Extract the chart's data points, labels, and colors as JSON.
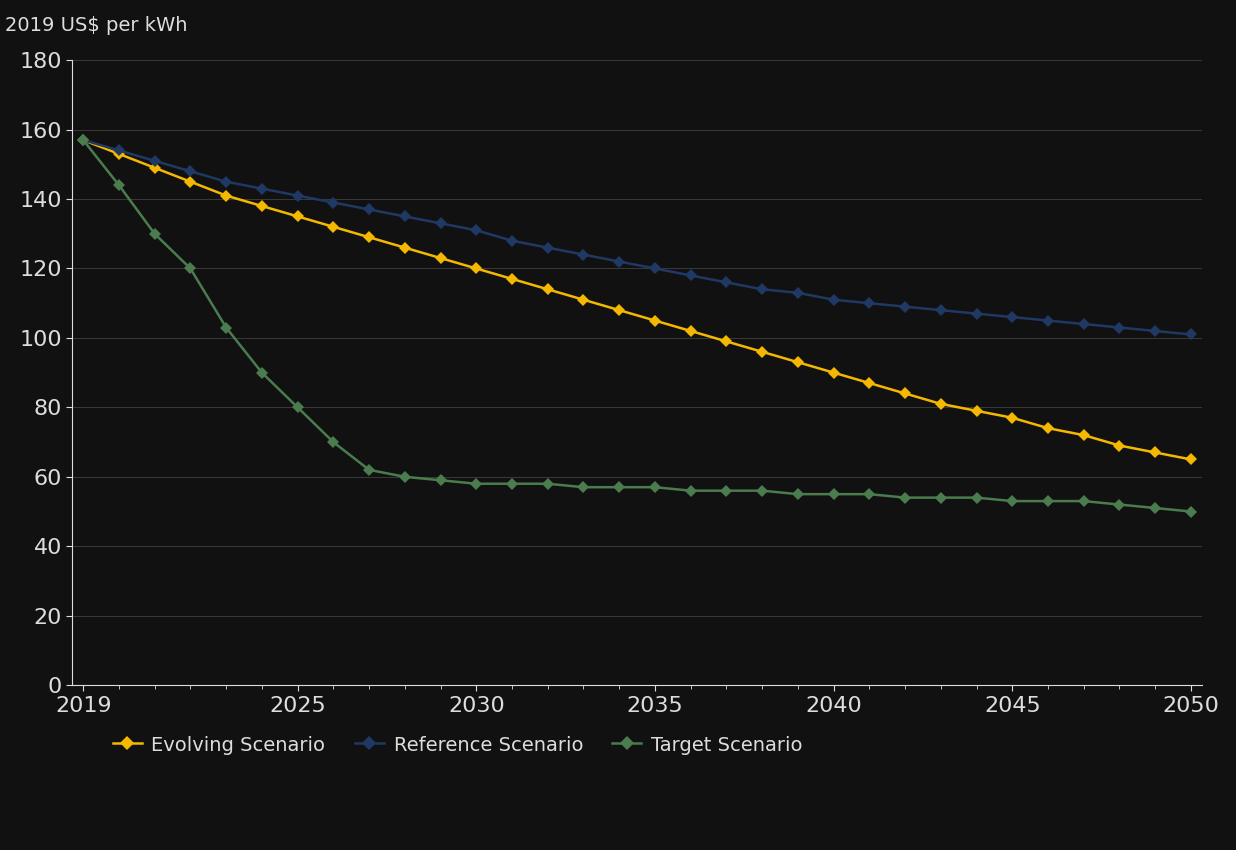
{
  "years": [
    2019,
    2020,
    2021,
    2022,
    2023,
    2024,
    2025,
    2026,
    2027,
    2028,
    2029,
    2030,
    2031,
    2032,
    2033,
    2034,
    2035,
    2036,
    2037,
    2038,
    2039,
    2040,
    2041,
    2042,
    2043,
    2044,
    2045,
    2046,
    2047,
    2048,
    2049,
    2050
  ],
  "reference": [
    157,
    154,
    151,
    148,
    145,
    143,
    141,
    139,
    137,
    135,
    133,
    131,
    128,
    126,
    124,
    122,
    120,
    118,
    116,
    114,
    113,
    111,
    110,
    109,
    108,
    107,
    106,
    105,
    104,
    103,
    102,
    101
  ],
  "evolving": [
    157,
    153,
    149,
    145,
    141,
    138,
    135,
    132,
    129,
    126,
    123,
    120,
    117,
    114,
    111,
    108,
    105,
    102,
    99,
    96,
    93,
    90,
    87,
    84,
    81,
    79,
    77,
    74,
    72,
    69,
    67,
    65
  ],
  "target": [
    157,
    144,
    130,
    120,
    103,
    90,
    80,
    70,
    62,
    60,
    59,
    58,
    58,
    58,
    57,
    57,
    57,
    56,
    56,
    56,
    55,
    55,
    55,
    54,
    54,
    54,
    53,
    53,
    53,
    52,
    51,
    50
  ],
  "reference_color": "#1f3864",
  "evolving_color": "#f5b800",
  "target_color": "#4a7c4e",
  "top_label": "2019 US$ per kWh",
  "ylim": [
    0,
    180
  ],
  "yticks": [
    0,
    20,
    40,
    60,
    80,
    100,
    120,
    140,
    160,
    180
  ],
  "xlim": [
    2019,
    2050
  ],
  "xticks": [
    2019,
    2025,
    2030,
    2035,
    2040,
    2045,
    2050
  ],
  "background_color": "#111111",
  "plot_bg_color": "#111111",
  "grid_color": "#3a3a3a",
  "text_color": "#dddddd",
  "legend_labels": [
    "Evolving Scenario",
    "Reference Scenario",
    "Target Scenario"
  ],
  "marker_size": 6,
  "line_width": 1.8
}
